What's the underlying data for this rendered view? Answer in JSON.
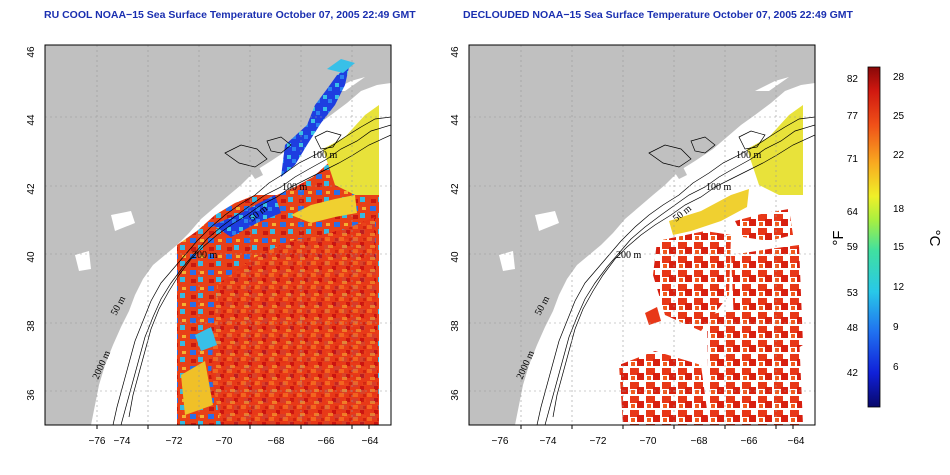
{
  "panels": [
    {
      "id": "left",
      "title": "RU COOL NOAA−15 Sea Surface Temperature October 07, 2005 22:49 GMT"
    },
    {
      "id": "right",
      "title": "DECLOUDED NOAA−15 Sea Surface Temperature October 07, 2005 22:49 GMT"
    }
  ],
  "axes": {
    "longitude_ticks": [
      "−76",
      "−74",
      "−72",
      "−70",
      "−68",
      "−66",
      "−64"
    ],
    "latitude_ticks": [
      "36",
      "38",
      "40",
      "42",
      "44",
      "46"
    ]
  },
  "contour_labels": {
    "left": [
      "100 m",
      "100 m",
      "50 m",
      "200 m",
      "50 m",
      "2000 m"
    ],
    "right": [
      "100 m",
      "100 m",
      "50 m",
      "200 m",
      "50 m",
      "2000 m"
    ]
  },
  "colorbar": {
    "fahrenheit_label": "°F",
    "celsius_label": "°C",
    "fahrenheit_ticks": [
      "82",
      "77",
      "71",
      "64",
      "59",
      "53",
      "48",
      "42"
    ],
    "celsius_ticks": [
      "28",
      "25",
      "22",
      "18",
      "15",
      "12",
      "9",
      "6"
    ],
    "range_celsius": [
      3,
      29
    ]
  },
  "colors": {
    "title": "#1a2fb0",
    "land": "#c0c0c0",
    "ocean_no_data": "#ffffff",
    "warm": "#e8341a",
    "hot": "#c81010",
    "mid_warm": "#f06a1a",
    "cool_yellow": "#e8e23a",
    "cold_blue": "#1a3ae0",
    "teal": "#30c8d8"
  }
}
